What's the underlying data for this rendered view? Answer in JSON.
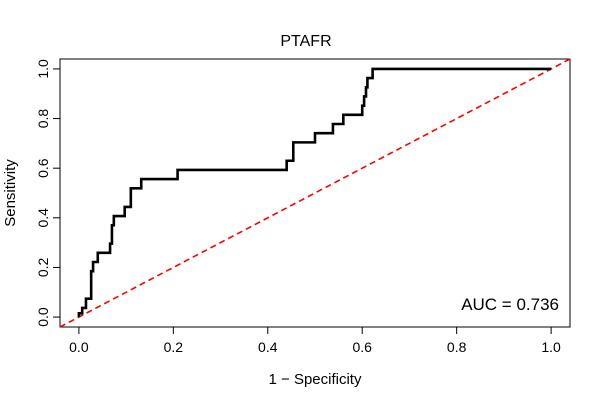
{
  "chart_data": {
    "type": "line",
    "title": "PTAFR",
    "xlabel": "1 − Specificity",
    "ylabel": "Sensitivity",
    "xlim": [
      -0.04,
      1.04
    ],
    "ylim": [
      -0.04,
      1.04
    ],
    "x_ticks": [
      0.0,
      0.2,
      0.4,
      0.6,
      0.8,
      1.0
    ],
    "x_tick_labels": [
      "0.0",
      "0.2",
      "0.4",
      "0.6",
      "0.8",
      "1.0"
    ],
    "y_ticks": [
      0.0,
      0.2,
      0.4,
      0.6,
      0.8,
      1.0
    ],
    "y_tick_labels": [
      "0.0",
      "0.2",
      "0.4",
      "0.6",
      "0.8",
      "1.0"
    ],
    "grid": false,
    "annotation": "AUC = 0.736",
    "series": [
      {
        "name": "ROC curve",
        "color": "#000000",
        "x": [
          0.0,
          0.0,
          0.007,
          0.007,
          0.015,
          0.015,
          0.026,
          0.026,
          0.03,
          0.03,
          0.033,
          0.033,
          0.04,
          0.04,
          0.066,
          0.066,
          0.07,
          0.07,
          0.074,
          0.074,
          0.097,
          0.097,
          0.11,
          0.11,
          0.132,
          0.132,
          0.209,
          0.209,
          0.44,
          0.44,
          0.454,
          0.454,
          0.5,
          0.5,
          0.538,
          0.538,
          0.56,
          0.56,
          0.6,
          0.6,
          0.604,
          0.604,
          0.608,
          0.608,
          0.611,
          0.611,
          0.622,
          0.622,
          1.0
        ],
        "y": [
          0.0,
          0.015,
          0.015,
          0.037,
          0.037,
          0.074,
          0.074,
          0.185,
          0.185,
          0.222,
          0.222,
          0.222,
          0.222,
          0.259,
          0.259,
          0.296,
          0.296,
          0.37,
          0.37,
          0.407,
          0.407,
          0.444,
          0.444,
          0.519,
          0.519,
          0.556,
          0.556,
          0.593,
          0.593,
          0.63,
          0.63,
          0.704,
          0.704,
          0.741,
          0.741,
          0.778,
          0.778,
          0.815,
          0.815,
          0.852,
          0.852,
          0.889,
          0.889,
          0.926,
          0.926,
          0.963,
          0.963,
          1.0,
          1.0
        ]
      },
      {
        "name": "chance line",
        "color": "#ff0000",
        "style": "dashed",
        "x": [
          -0.04,
          1.04
        ],
        "y": [
          -0.04,
          1.04
        ]
      }
    ]
  }
}
